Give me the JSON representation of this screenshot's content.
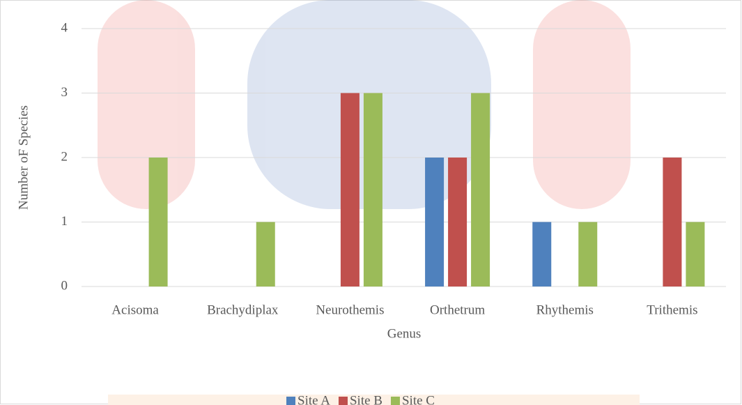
{
  "chart_data": {
    "type": "bar",
    "x_label": "Genus",
    "y_label": "Number oF Species",
    "categories": [
      "Acisoma",
      "Brachydiplax",
      "Neurothemis",
      "Orthetrum",
      "Rhythemis",
      "Trithemis"
    ],
    "series": [
      {
        "name": "Site A",
        "color": "#4f81bd",
        "values": [
          0,
          0,
          0,
          2,
          1,
          0
        ]
      },
      {
        "name": "Site B",
        "color": "#c0504d",
        "values": [
          0,
          0,
          3,
          2,
          0,
          2
        ]
      },
      {
        "name": "Site C",
        "color": "#9bbb59",
        "values": [
          2,
          1,
          3,
          3,
          1,
          1
        ]
      }
    ],
    "ylim": [
      0,
      4
    ],
    "yticks": [
      0,
      1,
      2,
      3,
      4
    ],
    "grid": true,
    "legend": "bottom"
  }
}
